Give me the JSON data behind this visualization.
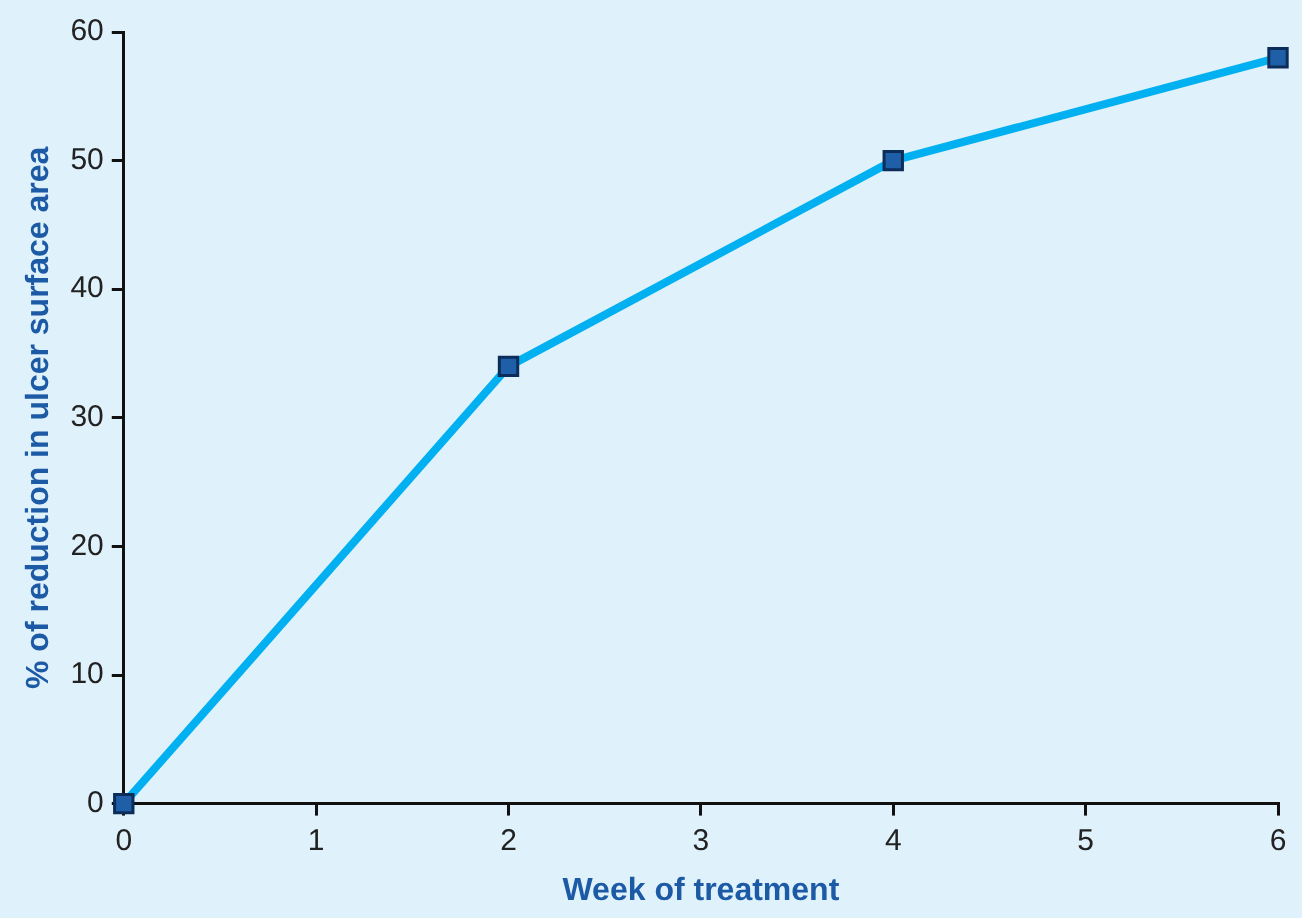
{
  "chart_data": {
    "type": "line",
    "xlabel": "Week of treatment",
    "ylabel": "% of reduction in ulcer surface area",
    "x": [
      0,
      2,
      4,
      6
    ],
    "series": [
      {
        "color": "#00b0f0",
        "values": [
          0,
          34,
          50,
          58
        ]
      }
    ],
    "xlim": [
      0,
      6
    ],
    "xticks": [
      0,
      1,
      2,
      3,
      4,
      5,
      6
    ],
    "ylim": [
      0,
      60
    ],
    "yticks": [
      0,
      10,
      20,
      30,
      40,
      50,
      60
    ],
    "grid": false,
    "legend": false,
    "marker": "square",
    "line_style": "solid"
  }
}
